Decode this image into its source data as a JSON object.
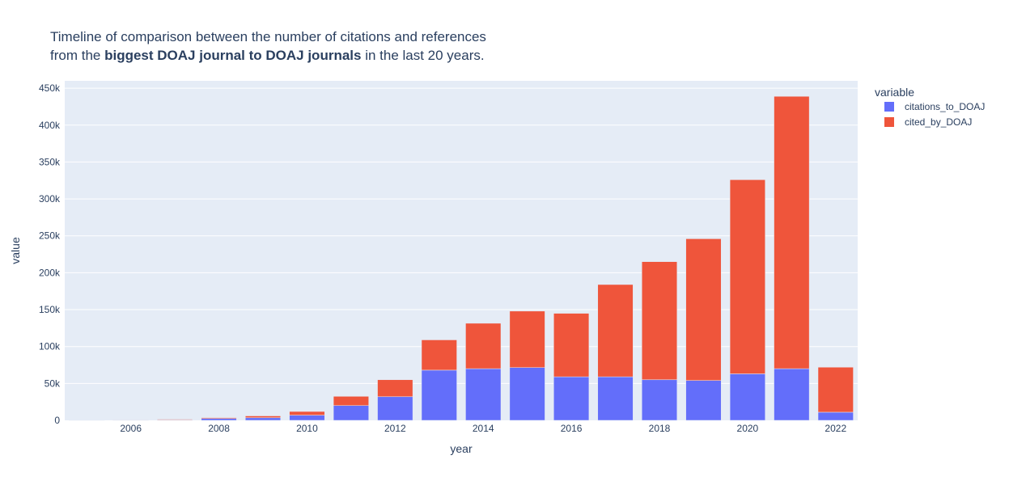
{
  "chart_data": {
    "type": "bar",
    "barmode": "stack",
    "title_line1": "Timeline of comparison between the number of citations and references",
    "title_line2_prefix": "from the ",
    "title_line2_bold": "biggest DOAJ journal to DOAJ journals",
    "title_line2_suffix": " in the last 20 years.",
    "xlabel": "year",
    "ylabel": "value",
    "legend_title": "variable",
    "legend_position": "top-right",
    "x": [
      2005,
      2006,
      2007,
      2008,
      2009,
      2010,
      2011,
      2012,
      2013,
      2014,
      2015,
      2016,
      2017,
      2018,
      2019,
      2020,
      2021,
      2022
    ],
    "xlim": [
      2004.5,
      2022.5
    ],
    "xticks": [
      2006,
      2008,
      2010,
      2012,
      2014,
      2016,
      2018,
      2020,
      2022
    ],
    "ylim": [
      0,
      460000
    ],
    "yticks": [
      0,
      50000,
      100000,
      150000,
      200000,
      250000,
      300000,
      350000,
      400000,
      450000
    ],
    "ytick_labels": [
      "0",
      "50k",
      "100k",
      "150k",
      "200k",
      "250k",
      "300k",
      "350k",
      "400k",
      "450k"
    ],
    "series": [
      {
        "name": "citations_to_DOAJ",
        "color": "#636efa",
        "values": [
          200,
          300,
          600,
          2500,
          3500,
          7000,
          20000,
          32000,
          68000,
          70000,
          71500,
          59000,
          59000,
          55000,
          54000,
          63000,
          70000,
          11000
        ]
      },
      {
        "name": "cited_by_DOAJ",
        "color": "#ef553b",
        "values": [
          300,
          500,
          900,
          1200,
          2500,
          5000,
          12500,
          23000,
          41000,
          61500,
          76500,
          86000,
          125000,
          160000,
          192000,
          263000,
          369000,
          61000
        ]
      }
    ],
    "grid": true,
    "plot_bgcolor": "#e5ecf6"
  }
}
